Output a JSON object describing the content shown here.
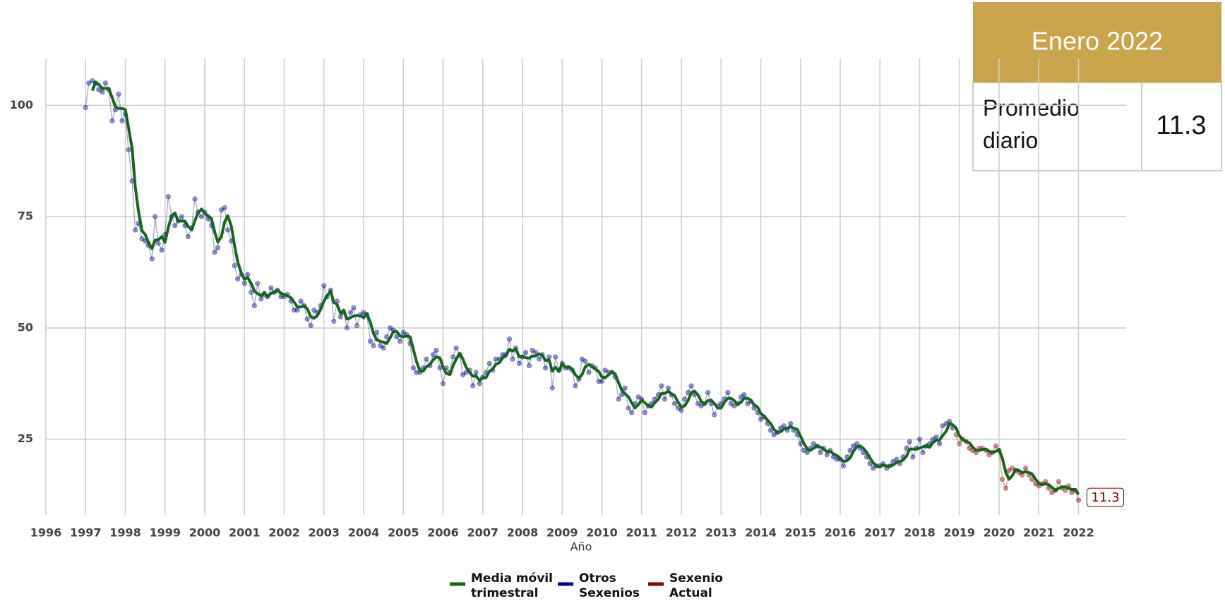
{
  "chart_data": {
    "type": "line",
    "xlabel": "Año",
    "xlim": [
      1996,
      2023.2
    ],
    "ylim": [
      8,
      110.5
    ],
    "xticks": [
      1996,
      1997,
      1998,
      1999,
      2000,
      2001,
      2002,
      2003,
      2004,
      2005,
      2006,
      2007,
      2008,
      2009,
      2010,
      2011,
      2012,
      2013,
      2014,
      2015,
      2016,
      2017,
      2018,
      2019,
      2020,
      2021,
      2022
    ],
    "yticks": [
      25,
      50,
      75,
      100
    ],
    "grid": true,
    "legend": "bottom",
    "x": [
      1997,
      1997.08,
      1997.17,
      1997.25,
      1997.33,
      1997.42,
      1997.5,
      1997.58,
      1997.67,
      1997.75,
      1997.83,
      1997.92,
      1998,
      1998.08,
      1998.17,
      1998.25,
      1998.33,
      1998.42,
      1998.5,
      1998.58,
      1998.67,
      1998.75,
      1998.83,
      1998.92,
      1999,
      1999.08,
      1999.17,
      1999.25,
      1999.33,
      1999.42,
      1999.5,
      1999.58,
      1999.67,
      1999.75,
      1999.83,
      1999.92,
      2000,
      2000.08,
      2000.17,
      2000.25,
      2000.33,
      2000.42,
      2000.5,
      2000.58,
      2000.67,
      2000.75,
      2000.83,
      2000.92,
      2001,
      2001.08,
      2001.17,
      2001.25,
      2001.33,
      2001.42,
      2001.5,
      2001.58,
      2001.67,
      2001.75,
      2001.83,
      2001.92,
      2002,
      2002.08,
      2002.17,
      2002.25,
      2002.33,
      2002.42,
      2002.5,
      2002.58,
      2002.67,
      2002.75,
      2002.83,
      2002.92,
      2003,
      2003.08,
      2003.17,
      2003.25,
      2003.33,
      2003.42,
      2003.5,
      2003.58,
      2003.67,
      2003.75,
      2003.83,
      2003.92,
      2004,
      2004.08,
      2004.17,
      2004.25,
      2004.33,
      2004.42,
      2004.5,
      2004.58,
      2004.67,
      2004.75,
      2004.83,
      2004.92,
      2005,
      2005.08,
      2005.17,
      2005.25,
      2005.33,
      2005.42,
      2005.5,
      2005.58,
      2005.67,
      2005.75,
      2005.83,
      2005.92,
      2006,
      2006.08,
      2006.17,
      2006.25,
      2006.33,
      2006.42,
      2006.5,
      2006.58,
      2006.67,
      2006.75,
      2006.83,
      2006.92,
      2007,
      2007.08,
      2007.17,
      2007.25,
      2007.33,
      2007.42,
      2007.5,
      2007.58,
      2007.67,
      2007.75,
      2007.83,
      2007.92,
      2008,
      2008.08,
      2008.17,
      2008.25,
      2008.33,
      2008.42,
      2008.5,
      2008.58,
      2008.67,
      2008.75,
      2008.83,
      2008.92,
      2009,
      2009.08,
      2009.17,
      2009.25,
      2009.33,
      2009.42,
      2009.5,
      2009.58,
      2009.67,
      2009.75,
      2009.83,
      2009.92,
      2010,
      2010.08,
      2010.17,
      2010.25,
      2010.33,
      2010.42,
      2010.5,
      2010.58,
      2010.67,
      2010.75,
      2010.83,
      2010.92,
      2011,
      2011.08,
      2011.17,
      2011.25,
      2011.33,
      2011.42,
      2011.5,
      2011.58,
      2011.67,
      2011.75,
      2011.83,
      2011.92,
      2012,
      2012.08,
      2012.17,
      2012.25,
      2012.33,
      2012.42,
      2012.5,
      2012.58,
      2012.67,
      2012.75,
      2012.83,
      2012.92,
      2013,
      2013.08,
      2013.17,
      2013.25,
      2013.33,
      2013.42,
      2013.5,
      2013.58,
      2013.67,
      2013.75,
      2013.83,
      2013.92,
      2014,
      2014.08,
      2014.17,
      2014.25,
      2014.33,
      2014.42,
      2014.5,
      2014.58,
      2014.67,
      2014.75,
      2014.83,
      2014.92,
      2015,
      2015.08,
      2015.17,
      2015.25,
      2015.33,
      2015.42,
      2015.5,
      2015.58,
      2015.67,
      2015.75,
      2015.83,
      2015.92,
      2016,
      2016.08,
      2016.17,
      2016.25,
      2016.33,
      2016.42,
      2016.5,
      2016.58,
      2016.67,
      2016.75,
      2016.83,
      2016.92,
      2017,
      2017.08,
      2017.17,
      2017.25,
      2017.33,
      2017.42,
      2017.5,
      2017.58,
      2017.67,
      2017.75,
      2017.83,
      2017.92,
      2018,
      2018.08,
      2018.17,
      2018.25,
      2018.33,
      2018.42,
      2018.5,
      2018.58,
      2018.67,
      2018.75,
      2018.83,
      2018.92,
      2019,
      2019.08,
      2019.17,
      2019.25,
      2019.33,
      2019.42,
      2019.5,
      2019.58,
      2019.67,
      2019.75,
      2019.83,
      2019.92,
      2020,
      2020.08,
      2020.17,
      2020.25,
      2020.33,
      2020.42,
      2020.5,
      2020.58,
      2020.67,
      2020.75,
      2020.83,
      2020.92,
      2021,
      2021.08,
      2021.17,
      2021.25,
      2021.33,
      2021.42,
      2021.5,
      2021.58,
      2021.67,
      2021.75,
      2021.83,
      2021.92,
      2022
    ],
    "series": [
      {
        "name": "Media móvil trimestral",
        "color": "#15661a",
        "values": [
          null,
          null,
          103.3,
          105.2,
          104.7,
          103.8,
          103.8,
          103.8,
          101.7,
          99.7,
          99.3,
          99.3,
          99,
          95,
          90.3,
          81.7,
          76.2,
          71.8,
          71,
          69.3,
          67.8,
          69.7,
          69.8,
          70.5,
          69.2,
          72.5,
          75.2,
          75.8,
          74,
          74,
          74,
          72.8,
          72,
          74,
          75.8,
          76.7,
          75.7,
          75.2,
          74.5,
          71.5,
          69.3,
          70.5,
          73.8,
          75.2,
          72.8,
          68.5,
          64.8,
          62.3,
          61,
          61.3,
          60,
          58.3,
          57.7,
          57.2,
          58,
          57,
          57.8,
          58,
          58.5,
          57.8,
          57.5,
          57.2,
          56.8,
          55.8,
          54.7,
          54.7,
          55,
          54.3,
          52.5,
          52.2,
          52.7,
          54.2,
          56,
          57.2,
          58.3,
          55.7,
          55.3,
          53.3,
          54,
          52,
          52.3,
          52.7,
          52.8,
          52.7,
          52.3,
          53.2,
          51.2,
          48.7,
          47.3,
          47,
          46.8,
          46.5,
          47.8,
          49.2,
          49.2,
          48.2,
          48,
          48.2,
          48,
          45.3,
          42.5,
          40.3,
          40.3,
          41.3,
          41.8,
          42.8,
          43.5,
          43.3,
          41.2,
          39.8,
          39.5,
          41.5,
          43,
          44.3,
          43,
          41.2,
          40,
          39.2,
          39.2,
          38.2,
          38.8,
          38.8,
          40.3,
          40.8,
          41.8,
          42.2,
          43.3,
          43.7,
          45.2,
          44.8,
          45.3,
          43.5,
          43.7,
          43.3,
          43.2,
          43.7,
          43.7,
          44.2,
          43.8,
          42.7,
          42.8,
          40.3,
          41.2,
          40.2,
          42,
          41.2,
          41.3,
          40.8,
          39.5,
          38.7,
          39.5,
          41.3,
          41.8,
          41.3,
          40.8,
          40.2,
          39,
          38.8,
          39.5,
          40.2,
          39.7,
          37.7,
          36,
          35.2,
          34.5,
          33.2,
          32,
          32.8,
          33.8,
          33.2,
          32.5,
          32.2,
          33.2,
          34,
          35.3,
          35.3,
          35.8,
          35.2,
          34.8,
          33.3,
          32.2,
          32.5,
          33.7,
          35.5,
          35.8,
          35,
          33.5,
          32.8,
          33.7,
          33.8,
          33,
          32,
          32,
          33.2,
          34.2,
          34.2,
          33.7,
          32.8,
          33.3,
          34.2,
          34.2,
          33.8,
          32.8,
          32.2,
          30.8,
          30.2,
          29.3,
          28.5,
          27.2,
          26.5,
          26.7,
          27.3,
          27.5,
          27.8,
          27.5,
          27.2,
          25.7,
          24.2,
          22.8,
          22.5,
          23,
          23.5,
          23.2,
          22.8,
          22.2,
          22.3,
          21.7,
          21.3,
          20.7,
          20,
          20.2,
          20.8,
          22.3,
          23.3,
          23.5,
          23,
          22,
          20.8,
          19.7,
          19,
          18.8,
          19.2,
          19,
          19,
          19.2,
          19.8,
          20,
          20.3,
          21.2,
          22.8,
          22.8,
          22.8,
          23,
          23.3,
          23.5,
          23.2,
          24.2,
          24.8,
          24.8,
          25.8,
          26.8,
          28.5,
          28.3,
          27.5,
          25.8,
          25,
          24.5,
          24.2,
          23.3,
          22.5,
          22.5,
          22.7,
          22.8,
          22.3,
          22,
          22.3,
          22.7,
          20.8,
          17.5,
          16,
          16.8,
          18.2,
          18,
          17.5,
          17.7,
          17.5,
          17.2,
          16,
          15.2,
          14.8,
          15,
          14.8,
          14.2,
          13.5,
          14,
          14.3,
          14.3,
          14,
          13.7,
          13.7,
          12.6
        ]
      },
      {
        "name": "Otros Sexenios",
        "color": "#00008b",
        "values": [
          99.5,
          105,
          105.5,
          105,
          103.5,
          103,
          105,
          103.5,
          96.5,
          99,
          102.5,
          96.5,
          98,
          90,
          83,
          72,
          73.5,
          70,
          69.5,
          68.5,
          65.5,
          75,
          69,
          67.5,
          71,
          79.5,
          75,
          73,
          74,
          75,
          73,
          70.5,
          72.5,
          79,
          76,
          75,
          76,
          74.5,
          73,
          67,
          68,
          76.5,
          77,
          72,
          69.5,
          64,
          61,
          62,
          60,
          62,
          58,
          55,
          60,
          56.5,
          57.5,
          57,
          59,
          58,
          58.5,
          57,
          57,
          57.5,
          56,
          54,
          54,
          56,
          55,
          52,
          50.5,
          54,
          53.5,
          55,
          59.5,
          57,
          58.5,
          51.5,
          56,
          52.5,
          53.5,
          50,
          53.5,
          54.5,
          50.5,
          53,
          53.5,
          53,
          47,
          46,
          49,
          46,
          45.5,
          48,
          50,
          49.5,
          48,
          47,
          49,
          48.5,
          46.5,
          41,
          40,
          40,
          41,
          43,
          41.5,
          44,
          45,
          41,
          37.5,
          41,
          40,
          43.5,
          45.5,
          44,
          39.5,
          40,
          40.5,
          37,
          40,
          37.5,
          39,
          40,
          42,
          40.5,
          43,
          43,
          44,
          44,
          47.5,
          43,
          45.5,
          42,
          43.5,
          44.5,
          41.5,
          45,
          44.5,
          43,
          44,
          41,
          43.5,
          36.5,
          43.5,
          40.5,
          42,
          41,
          41,
          40.5,
          37,
          38.5,
          43,
          42.5,
          40,
          41.5,
          41,
          38,
          38,
          40.5,
          40,
          40,
          39,
          34,
          35,
          36.5,
          32,
          31,
          33,
          34.5,
          34,
          31,
          32.5,
          33,
          34,
          35,
          37,
          34,
          36.5,
          35,
          33,
          32,
          31.5,
          34,
          35.5,
          37,
          35,
          33,
          32.5,
          33,
          35.5,
          33,
          30.5,
          32.5,
          33,
          34,
          35.5,
          33,
          32.5,
          33,
          34.5,
          35,
          33,
          33.5,
          32,
          31,
          29.5,
          30,
          28.5,
          27,
          26,
          26.5,
          27.5,
          28,
          27,
          28.5,
          27,
          26,
          24,
          22.5,
          22,
          23,
          24,
          23.5,
          22,
          23,
          21.5,
          22.5,
          21,
          20.5,
          20.5,
          19,
          21,
          22.5,
          23.5,
          24,
          23,
          22,
          21,
          19.5,
          18.5,
          19,
          19,
          19.5,
          18.5,
          19,
          20,
          20.5,
          19.5,
          21,
          23,
          24.5,
          21,
          23,
          25,
          22,
          23.5,
          24,
          25,
          25.5,
          24,
          28,
          28.5,
          29,
          27.5,
          null,
          null,
          null,
          null,
          null,
          null,
          null,
          null,
          null,
          null,
          null,
          null,
          null,
          null,
          null,
          null,
          null,
          null,
          null,
          null,
          null,
          null,
          null,
          null,
          null,
          null,
          null,
          null,
          null,
          null,
          null,
          null,
          null,
          null,
          null,
          null,
          null,
          null
        ]
      },
      {
        "name": "Sexenio Actual",
        "color": "#8b0000",
        "values": [
          null,
          null,
          null,
          null,
          null,
          null,
          null,
          null,
          null,
          null,
          null,
          null,
          null,
          null,
          null,
          null,
          null,
          null,
          null,
          null,
          null,
          null,
          null,
          null,
          null,
          null,
          null,
          null,
          null,
          null,
          null,
          null,
          null,
          null,
          null,
          null,
          null,
          null,
          null,
          null,
          null,
          null,
          null,
          null,
          null,
          null,
          null,
          null,
          null,
          null,
          null,
          null,
          null,
          null,
          null,
          null,
          null,
          null,
          null,
          null,
          null,
          null,
          null,
          null,
          null,
          null,
          null,
          null,
          null,
          null,
          null,
          null,
          null,
          null,
          null,
          null,
          null,
          null,
          null,
          null,
          null,
          null,
          null,
          null,
          null,
          null,
          null,
          null,
          null,
          null,
          null,
          null,
          null,
          null,
          null,
          null,
          null,
          null,
          null,
          null,
          null,
          null,
          null,
          null,
          null,
          null,
          null,
          null,
          null,
          null,
          null,
          null,
          null,
          null,
          null,
          null,
          null,
          null,
          null,
          null,
          null,
          null,
          null,
          null,
          null,
          null,
          null,
          null,
          null,
          null,
          null,
          null,
          null,
          null,
          null,
          null,
          null,
          null,
          null,
          null,
          null,
          null,
          null,
          null,
          null,
          null,
          null,
          null,
          null,
          null,
          null,
          null,
          null,
          null,
          null,
          null,
          null,
          null,
          null,
          null,
          null,
          null,
          null,
          null,
          null,
          null,
          null,
          null,
          null,
          null,
          null,
          null,
          null,
          null,
          null,
          null,
          null,
          null,
          null,
          null,
          null,
          null,
          null,
          null,
          null,
          null,
          null,
          null,
          null,
          null,
          null,
          null,
          null,
          null,
          null,
          null,
          null,
          null,
          null,
          null,
          null,
          null,
          null,
          null,
          null,
          null,
          null,
          null,
          null,
          null,
          null,
          null,
          null,
          null,
          null,
          null,
          null,
          null,
          null,
          null,
          null,
          null,
          null,
          null,
          null,
          null,
          null,
          null,
          null,
          null,
          null,
          null,
          null,
          null,
          null,
          null,
          null,
          null,
          null,
          null,
          null,
          null,
          null,
          null,
          null,
          null,
          null,
          null,
          null,
          null,
          null,
          null,
          null,
          null,
          null,
          null,
          null,
          null,
          null,
          null,
          null,
          null,
          null,
          26,
          24,
          25,
          24.5,
          23,
          22.5,
          22,
          23,
          23,
          22.5,
          21.5,
          22,
          23.5,
          22.5,
          16,
          14,
          18,
          18.5,
          18,
          17.5,
          17,
          18.5,
          17,
          16,
          15,
          14.5,
          15,
          15.5,
          14,
          13,
          13.5,
          15.5,
          14,
          13.5,
          14.5,
          13,
          13.5,
          11.3
        ]
      }
    ]
  },
  "card": {
    "title": "Enero 2022",
    "label": "Promedio diario",
    "value": 11.3
  }
}
